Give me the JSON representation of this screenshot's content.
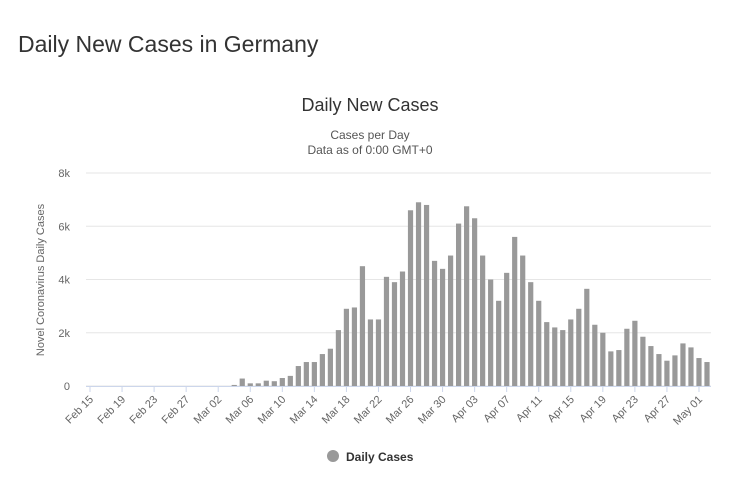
{
  "page_title": "Daily New Cases in Germany",
  "chart_data": {
    "type": "bar",
    "title": "Daily New Cases",
    "subtitle": [
      "Cases per Day",
      "Data as of 0:00 GMT+0"
    ],
    "y_label": "Novel Coronavirus Daily Cases",
    "categories": [
      "Feb 15",
      null,
      null,
      null,
      "Feb 19",
      null,
      null,
      null,
      "Feb 23",
      null,
      null,
      null,
      "Feb 27",
      null,
      null,
      null,
      "Mar 02",
      null,
      null,
      null,
      "Mar 06",
      null,
      null,
      null,
      "Mar 10",
      null,
      null,
      null,
      "Mar 14",
      null,
      null,
      null,
      "Mar 18",
      null,
      null,
      null,
      "Mar 22",
      null,
      null,
      null,
      "Mar 26",
      null,
      null,
      null,
      "Mar 30",
      null,
      null,
      null,
      "Apr 03",
      null,
      null,
      null,
      "Apr 07",
      null,
      null,
      null,
      "Apr 11",
      null,
      null,
      null,
      "Apr 15",
      null,
      null,
      null,
      "Apr 19",
      null,
      null,
      null,
      "Apr 23",
      null,
      null,
      null,
      "Apr 27",
      null,
      null,
      null,
      "May 01",
      null
    ],
    "series": [
      {
        "name": "Daily Cases",
        "color": "#999999",
        "values": [
          0,
          0,
          0,
          0,
          0,
          0,
          0,
          0,
          0,
          0,
          0,
          0,
          0,
          0,
          0,
          0,
          0,
          0,
          40,
          280,
          100,
          100,
          200,
          180,
          300,
          380,
          750,
          900,
          900,
          1200,
          1400,
          2100,
          2900,
          2950,
          4500,
          2500,
          2500,
          4100,
          3900,
          4300,
          6600,
          6900,
          6800,
          4700,
          4400,
          4900,
          6100,
          6750,
          6300,
          4900,
          4000,
          3200,
          4250,
          5600,
          4900,
          3900,
          3200,
          2400,
          2200,
          2100,
          2500,
          2900,
          3650,
          2300,
          2000,
          1300,
          1350,
          2150,
          2450,
          1850,
          1500,
          1200,
          950,
          1150,
          1600,
          1450,
          1050,
          900
        ]
      }
    ],
    "ylim": [
      0,
      8000
    ],
    "yticks": [
      0,
      {
        "value": 2000,
        "label": "2k"
      },
      {
        "value": 4000,
        "label": "4k"
      },
      {
        "value": 6000,
        "label": "6k"
      },
      {
        "value": 8000,
        "label": "8k"
      }
    ],
    "grid": true
  }
}
